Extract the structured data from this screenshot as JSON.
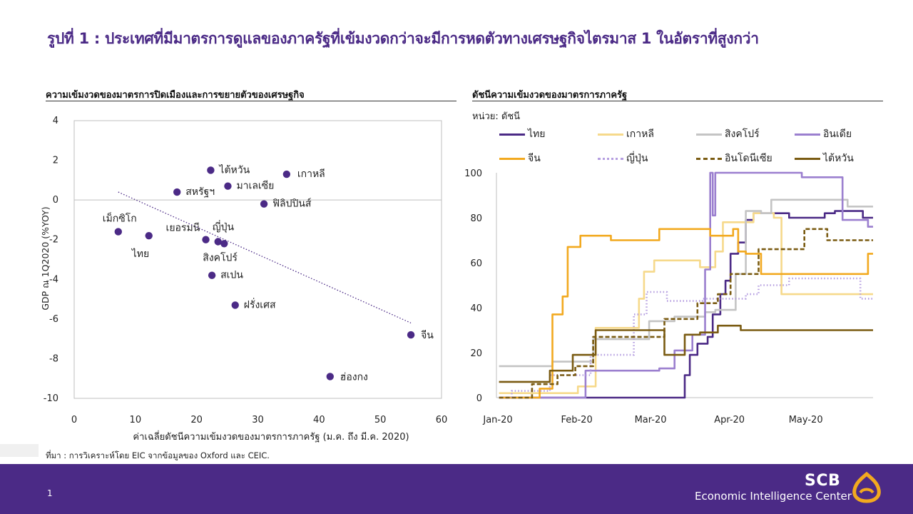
{
  "title": "รูปที่ 1 : ประเทศที่มีมาตรการดูแลของภาครัฐที่เข้มงวดกว่าจะมีการหดตัวทางเศรษฐกิจไตรมาส 1 ในอัตราที่สูงกว่า",
  "left_panel_title": "ความเข้มงวดของมาตรการปิดเมืองและการขยายตัวของเศรษฐกิจ",
  "right_panel_title": "ดัชนีความเข้มงวดของมาตรการภาครัฐ",
  "right_unit": "หน่วย: ดัชนี",
  "source": "ที่มา : การวิเคราะห์โดย EIC จากข้อมูลของ Oxford และ CEIC.",
  "page_number": "1",
  "brand": {
    "name": "SCB",
    "sub": "Economic Intelligence Center"
  },
  "colors": {
    "brand": "#4b2a86",
    "point": "#4b2a86",
    "trend": "#4b2a86"
  },
  "chart_data": [
    {
      "type": "scatter",
      "xlabel": "ค่าเฉลี่ยดัชนีความเข้มงวดของมาตรการภาครัฐ (ม.ค. ถึง  มี.ค. 2020)",
      "ylabel": "GDP ณ 1Q2020 (%YOY)",
      "xlim": [
        0,
        60
      ],
      "ylim": [
        -10,
        4
      ],
      "xticks": [
        0,
        10,
        20,
        30,
        40,
        50,
        60
      ],
      "yticks": [
        4,
        2,
        0,
        -2,
        -4,
        -6,
        -8,
        -10
      ],
      "points": [
        {
          "label": "ไต้หวัน",
          "x": 22.3,
          "y": 1.5
        },
        {
          "label": "เกาหลี",
          "x": 34.7,
          "y": 1.3
        },
        {
          "label": "สหรัฐฯ",
          "x": 16.8,
          "y": 0.4
        },
        {
          "label": "มาเลเซีย",
          "x": 25.1,
          "y": 0.7
        },
        {
          "label": "ฟิลิปปินส์",
          "x": 31.0,
          "y": -0.2
        },
        {
          "label": "เม็กซิโก",
          "x": 7.2,
          "y": -1.6
        },
        {
          "label": "ไทย",
          "x": 12.2,
          "y": -1.8
        },
        {
          "label": "เยอรมนี",
          "x": 21.5,
          "y": -2.0
        },
        {
          "label": "ญี่ปุ่น",
          "x": 23.5,
          "y": -2.1
        },
        {
          "label": "สิงคโปร์",
          "x": 24.5,
          "y": -2.2
        },
        {
          "label": "สเปน",
          "x": 22.5,
          "y": -3.8
        },
        {
          "label": "ฝรั่งเศส",
          "x": 26.3,
          "y": -5.3
        },
        {
          "label": "จีน",
          "x": 55.0,
          "y": -6.8
        },
        {
          "label": "ฮ่องกง",
          "x": 41.8,
          "y": -8.9
        }
      ],
      "trendline": {
        "x": [
          7.2,
          55.0
        ],
        "y": [
          0.4,
          -6.2
        ]
      }
    },
    {
      "type": "line",
      "ylim": [
        0,
        100
      ],
      "yticks": [
        0,
        20,
        40,
        60,
        80,
        100
      ],
      "xticks": [
        "Jan-20",
        "Feb-20",
        "Mar-20",
        "Apr-20",
        "May-20"
      ],
      "series": [
        {
          "name": "ไทย",
          "color": "#4b2a86",
          "dash": "solid",
          "points": [
            [
              1,
              0
            ],
            [
              74,
              0
            ],
            [
              74,
              10
            ],
            [
              76,
              10
            ],
            [
              76,
              19
            ],
            [
              79,
              19
            ],
            [
              79,
              24
            ],
            [
              83,
              24
            ],
            [
              83,
              27
            ],
            [
              85,
              27
            ],
            [
              85,
              37
            ],
            [
              88,
              37
            ],
            [
              88,
              46
            ],
            [
              90,
              46
            ],
            [
              90,
              52
            ],
            [
              92,
              52
            ],
            [
              92,
              64
            ],
            [
              95,
              64
            ],
            [
              95,
              69
            ],
            [
              98,
              69
            ],
            [
              98,
              79
            ],
            [
              101,
              79
            ],
            [
              101,
              82
            ],
            [
              115,
              82
            ],
            [
              115,
              80
            ],
            [
              129,
              80
            ],
            [
              129,
              82
            ],
            [
              133,
              82
            ],
            [
              133,
              83
            ],
            [
              144,
              83
            ],
            [
              144,
              80
            ],
            [
              148,
              80
            ]
          ]
        },
        {
          "name": "เกาหลี",
          "color": "#f6d98b",
          "dash": "solid",
          "points": [
            [
              1,
              2
            ],
            [
              32,
              2
            ],
            [
              32,
              5
            ],
            [
              39,
              5
            ],
            [
              39,
              31
            ],
            [
              56,
              31
            ],
            [
              56,
              44
            ],
            [
              58,
              44
            ],
            [
              58,
              56
            ],
            [
              62,
              56
            ],
            [
              62,
              61
            ],
            [
              80,
              61
            ],
            [
              80,
              58
            ],
            [
              86,
              58
            ],
            [
              86,
              65
            ],
            [
              89,
              65
            ],
            [
              89,
              78
            ],
            [
              101,
              78
            ],
            [
              101,
              82
            ],
            [
              109,
              82
            ],
            [
              109,
              80
            ],
            [
              112,
              80
            ],
            [
              112,
              46
            ],
            [
              148,
              46
            ]
          ]
        },
        {
          "name": "สิงคโปร์",
          "color": "#c4c4c4",
          "dash": "solid",
          "points": [
            [
              1,
              14
            ],
            [
              22,
              14
            ],
            [
              22,
              16
            ],
            [
              38,
              16
            ],
            [
              38,
              26
            ],
            [
              60,
              26
            ],
            [
              60,
              34
            ],
            [
              70,
              34
            ],
            [
              70,
              36
            ],
            [
              82,
              36
            ],
            [
              82,
              38
            ],
            [
              86,
              38
            ],
            [
              86,
              39
            ],
            [
              94,
              39
            ],
            [
              94,
              55
            ],
            [
              98,
              55
            ],
            [
              98,
              83
            ],
            [
              104,
              83
            ],
            [
              104,
              82
            ],
            [
              108,
              82
            ],
            [
              108,
              88
            ],
            [
              138,
              88
            ],
            [
              138,
              85
            ],
            [
              148,
              85
            ]
          ]
        },
        {
          "name": "อินเดีย",
          "color": "#9b7fcf",
          "dash": "solid",
          "points": [
            [
              1,
              0
            ],
            [
              35,
              0
            ],
            [
              35,
              12
            ],
            [
              64,
              12
            ],
            [
              64,
              13
            ],
            [
              70,
              13
            ],
            [
              70,
              21
            ],
            [
              77,
              21
            ],
            [
              77,
              28
            ],
            [
              82,
              28
            ],
            [
              82,
              57
            ],
            [
              84,
              57
            ],
            [
              84,
              100
            ],
            [
              85,
              100
            ],
            [
              85,
              81
            ],
            [
              86,
              81
            ],
            [
              86,
              100
            ],
            [
              120,
              100
            ],
            [
              120,
              98
            ],
            [
              136,
              98
            ],
            [
              136,
              79
            ],
            [
              146,
              79
            ],
            [
              146,
              76
            ],
            [
              148,
              76
            ]
          ]
        },
        {
          "name": "จีน",
          "color": "#f2a91f",
          "dash": "solid",
          "points": [
            [
              1,
              0
            ],
            [
              17,
              0
            ],
            [
              17,
              4
            ],
            [
              22,
              4
            ],
            [
              22,
              37
            ],
            [
              26,
              37
            ],
            [
              26,
              45
            ],
            [
              28,
              45
            ],
            [
              28,
              67
            ],
            [
              33,
              67
            ],
            [
              33,
              72
            ],
            [
              45,
              72
            ],
            [
              45,
              70
            ],
            [
              56,
              70
            ],
            [
              56,
              70
            ],
            [
              64,
              70
            ],
            [
              64,
              75
            ],
            [
              84,
              75
            ],
            [
              84,
              72
            ],
            [
              93,
              72
            ],
            [
              93,
              75
            ],
            [
              95,
              75
            ],
            [
              95,
              65
            ],
            [
              98,
              65
            ],
            [
              98,
              64
            ],
            [
              104,
              64
            ],
            [
              104,
              55
            ],
            [
              146,
              55
            ],
            [
              146,
              64
            ],
            [
              148,
              64
            ]
          ]
        },
        {
          "name": "ญี่ปุ่น",
          "color": "#b59ee0",
          "dash": "dot",
          "points": [
            [
              1,
              0
            ],
            [
              6,
              0
            ],
            [
              6,
              3
            ],
            [
              21,
              3
            ],
            [
              21,
              10
            ],
            [
              37,
              10
            ],
            [
              37,
              19
            ],
            [
              54,
              19
            ],
            [
              54,
              37
            ],
            [
              59,
              37
            ],
            [
              59,
              47
            ],
            [
              67,
              47
            ],
            [
              67,
              43
            ],
            [
              81,
              43
            ],
            [
              81,
              44
            ],
            [
              98,
              44
            ],
            [
              98,
              46
            ],
            [
              103,
              46
            ],
            [
              103,
              50
            ],
            [
              115,
              50
            ],
            [
              115,
              53
            ],
            [
              143,
              53
            ],
            [
              143,
              44
            ],
            [
              148,
              44
            ]
          ]
        },
        {
          "name": "อินโดนีเซีย",
          "color": "#7a5b12",
          "dash": "dash",
          "points": [
            [
              1,
              0
            ],
            [
              14,
              0
            ],
            [
              14,
              6
            ],
            [
              24,
              6
            ],
            [
              24,
              10
            ],
            [
              31,
              10
            ],
            [
              31,
              14
            ],
            [
              38,
              14
            ],
            [
              38,
              27
            ],
            [
              66,
              27
            ],
            [
              66,
              35
            ],
            [
              79,
              35
            ],
            [
              79,
              42
            ],
            [
              87,
              42
            ],
            [
              87,
              46
            ],
            [
              92,
              46
            ],
            [
              92,
              55
            ],
            [
              103,
              55
            ],
            [
              103,
              66
            ],
            [
              121,
              66
            ],
            [
              121,
              75
            ],
            [
              130,
              75
            ],
            [
              130,
              70
            ],
            [
              148,
              70
            ]
          ]
        },
        {
          "name": "ไต้หวัน",
          "color": "#7a5b12",
          "dash": "solid",
          "points": [
            [
              1,
              7
            ],
            [
              21,
              7
            ],
            [
              21,
              12
            ],
            [
              30,
              12
            ],
            [
              30,
              19
            ],
            [
              39,
              19
            ],
            [
              39,
              30
            ],
            [
              66,
              30
            ],
            [
              66,
              19
            ],
            [
              74,
              19
            ],
            [
              74,
              28
            ],
            [
              80,
              28
            ],
            [
              80,
              29
            ],
            [
              87,
              29
            ],
            [
              87,
              32
            ],
            [
              96,
              32
            ],
            [
              96,
              30
            ],
            [
              148,
              30
            ]
          ]
        }
      ]
    }
  ]
}
